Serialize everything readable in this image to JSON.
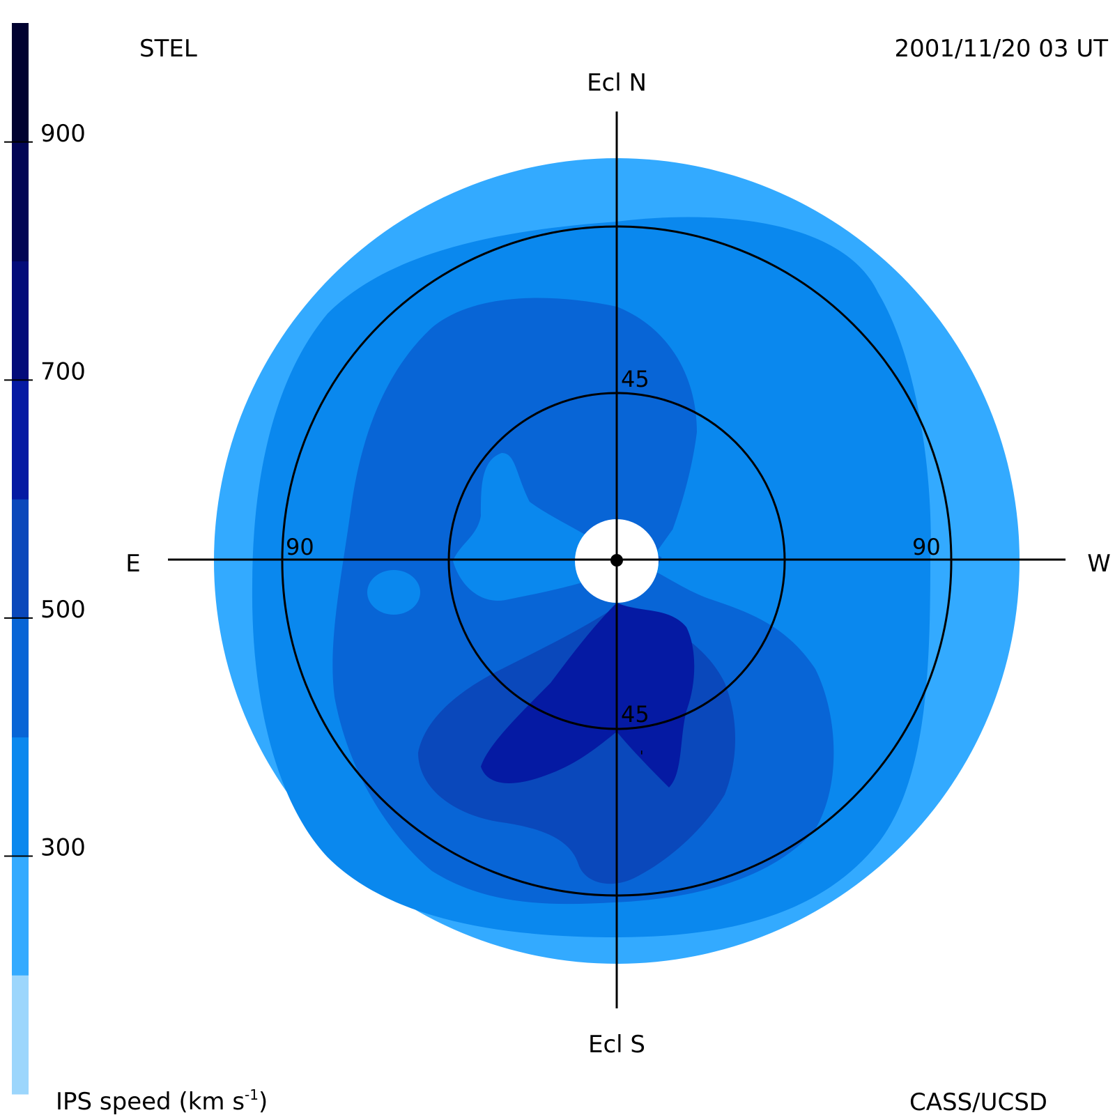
{
  "header": {
    "observatory": "STEL",
    "datetime": "2001/11/20 03 UT",
    "credit": "CASS/UCSD"
  },
  "colorbar": {
    "label_main": "IPS speed (km s",
    "label_exp": "-1",
    "label_close": ")",
    "ticks": [
      "900",
      "700",
      "500",
      "300"
    ],
    "tick_values": [
      900,
      700,
      500,
      300
    ],
    "range": [
      100,
      1000
    ],
    "bins": [
      {
        "from": 100,
        "to": 200,
        "color": "#9cd6fc"
      },
      {
        "from": 200,
        "to": 300,
        "color": "#33aaff"
      },
      {
        "from": 300,
        "to": 400,
        "color": "#0a88ee"
      },
      {
        "from": 400,
        "to": 500,
        "color": "#0865d6"
      },
      {
        "from": 500,
        "to": 600,
        "color": "#0a48bb"
      },
      {
        "from": 600,
        "to": 700,
        "color": "#051aa3"
      },
      {
        "from": 700,
        "to": 800,
        "color": "#030c7a"
      },
      {
        "from": 800,
        "to": 900,
        "color": "#020555"
      },
      {
        "from": 900,
        "to": 1000,
        "color": "#010230"
      }
    ]
  },
  "compass": {
    "north": "Ecl N",
    "south": "Ecl S",
    "east": "E",
    "west": "W"
  },
  "rings": {
    "inner_label_top": "45",
    "inner_label_bottom": "45",
    "outer_label_left": "90",
    "outer_label_right": "90",
    "inner_elongation_deg": 45,
    "outer_elongation_deg": 90
  },
  "chart_data": {
    "type": "heatmap",
    "projection": "fisheye sky map centered on the Sun",
    "quantity": "IPS speed",
    "unit": "km s^-1",
    "colorbar_range": [
      100,
      1000
    ],
    "colorbar_ticks": [
      300,
      500,
      700,
      900
    ],
    "elongation_rings_deg": [
      45,
      90
    ],
    "regions": [
      {
        "region": "outer edge",
        "speed_bin": [
          200,
          300
        ]
      },
      {
        "region": "north-west and west",
        "speed_bin": [
          300,
          400
        ]
      },
      {
        "region": "east and north-east",
        "speed_bin": [
          400,
          500
        ]
      },
      {
        "region": "south-west",
        "speed_bin": [
          400,
          500
        ]
      },
      {
        "region": "south",
        "speed_bin": [
          500,
          600
        ]
      },
      {
        "region": "south near the Sun",
        "speed_bin": [
          600,
          700
        ]
      }
    ]
  }
}
